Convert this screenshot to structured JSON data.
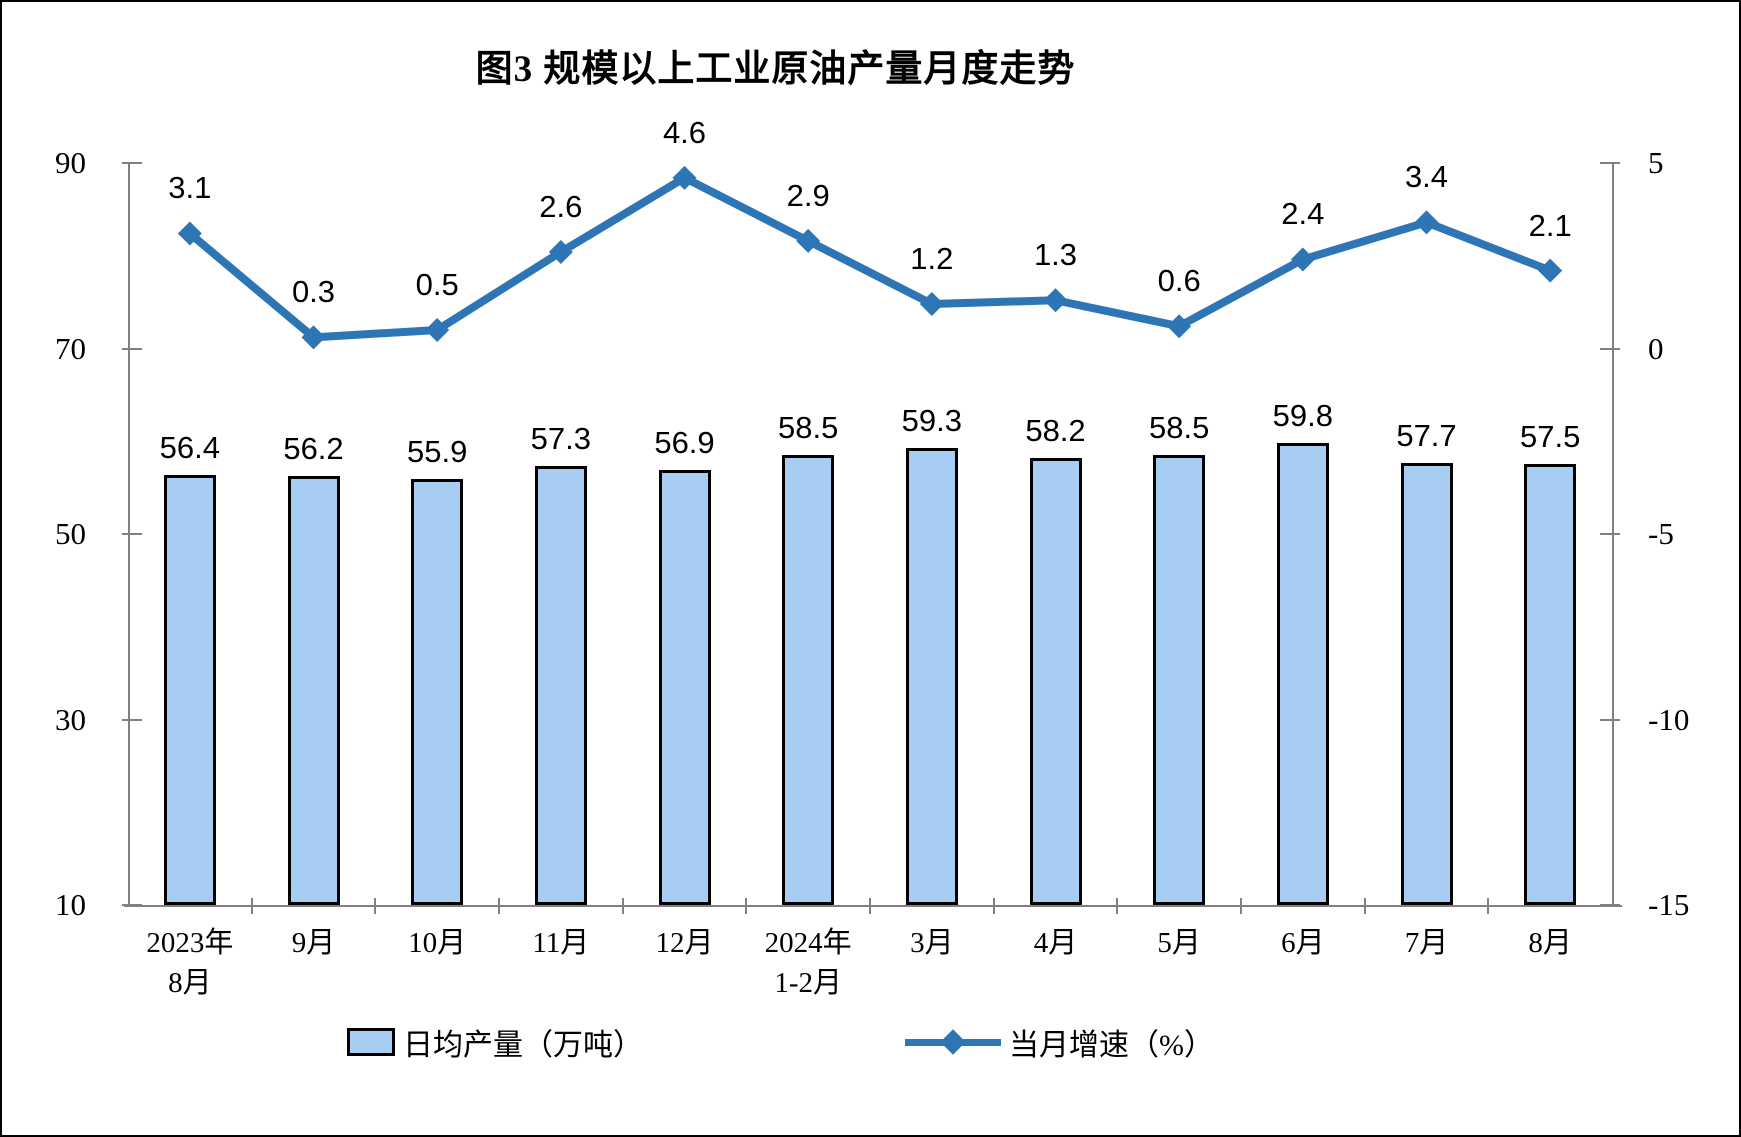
{
  "chart_data": {
    "type": "bar+line combo",
    "title": "图3 规模以上工业原油产量月度走势",
    "categories": [
      [
        "2023年",
        "8月"
      ],
      [
        "9月"
      ],
      [
        "10月"
      ],
      [
        "11月"
      ],
      [
        "12月"
      ],
      [
        "2024年",
        "1-2月"
      ],
      [
        "3月"
      ],
      [
        "4月"
      ],
      [
        "5月"
      ],
      [
        "6月"
      ],
      [
        "7月"
      ],
      [
        "8月"
      ]
    ],
    "series": [
      {
        "name": "日均产量（万吨）",
        "type": "bar",
        "axis": "left",
        "values": [
          56.4,
          56.2,
          55.9,
          57.3,
          56.9,
          58.5,
          59.3,
          58.2,
          58.5,
          59.8,
          57.7,
          57.5
        ],
        "fill_color": "#A8CDF2",
        "border_color": "#000000"
      },
      {
        "name": "当月增速（%）",
        "type": "line",
        "axis": "right",
        "values": [
          3.1,
          0.3,
          0.5,
          2.6,
          4.6,
          2.9,
          1.2,
          1.3,
          0.6,
          2.4,
          3.4,
          2.1
        ],
        "color": "#2E75B6",
        "marker": "diamond"
      }
    ],
    "left_axis": {
      "min": 10,
      "max": 90,
      "ticks": [
        90,
        70,
        50,
        30,
        10
      ]
    },
    "right_axis": {
      "min": -15,
      "max": 5,
      "ticks": [
        5,
        0,
        -5,
        -10,
        -15
      ]
    },
    "grid": false,
    "legend_position": "bottom",
    "data_labels": true
  },
  "colors": {
    "bar_fill": "#A8CDF2",
    "bar_border": "#000000",
    "line": "#2E75B6",
    "axis": "#808080",
    "text": "#000000",
    "background": "#FFFFFF"
  }
}
